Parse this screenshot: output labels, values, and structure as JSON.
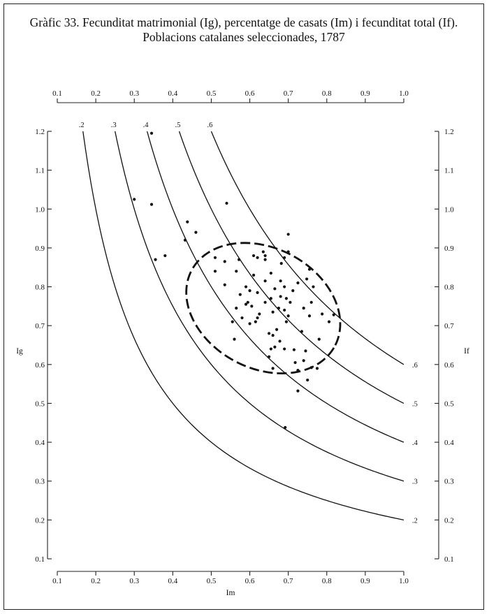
{
  "chart_data": {
    "type": "scatter",
    "title": "Gràfic 33. Fecunditat matrimonial (Ig), percentatge de casats (Im) i fecunditat total (If).",
    "subtitle": "Poblacions catalanes seleccionades, 1787",
    "xlabel": "Im",
    "ylabel": "Ig",
    "y2label": "If",
    "xlim": [
      0.1,
      1.0
    ],
    "ylim": [
      0.1,
      1.2
    ],
    "xticks": [
      "0.1",
      "0.2",
      "0.3",
      "0.4",
      "0.5",
      "0.6",
      "0.7",
      "0.8",
      "0.9",
      "1.0"
    ],
    "yticks": [
      "0.1",
      "0.2",
      "0.3",
      "0.4",
      "0.5",
      "0.6",
      "0.7",
      "0.8",
      "0.9",
      "1.0",
      "1.1",
      "1.2"
    ],
    "grid": false,
    "iso_curves": [
      {
        "if": 0.2,
        "label": ".2"
      },
      {
        "if": 0.3,
        "label": ".3"
      },
      {
        "if": 0.4,
        "label": ".4"
      },
      {
        "if": 0.5,
        "label": ".5"
      },
      {
        "if": 0.6,
        "label": ".6"
      }
    ],
    "ellipse": {
      "cx": 0.635,
      "cy": 0.745,
      "rx": 0.21,
      "ry": 0.155,
      "rotation_deg": 27
    },
    "points": [
      [
        0.345,
        1.195
      ],
      [
        0.3,
        1.025
      ],
      [
        0.345,
        1.012
      ],
      [
        0.54,
        1.015
      ],
      [
        0.438,
        0.967
      ],
      [
        0.46,
        0.94
      ],
      [
        0.432,
        0.92
      ],
      [
        0.355,
        0.87
      ],
      [
        0.38,
        0.88
      ],
      [
        0.7,
        0.935
      ],
      [
        0.7,
        0.89
      ],
      [
        0.69,
        0.875
      ],
      [
        0.51,
        0.875
      ],
      [
        0.535,
        0.865
      ],
      [
        0.572,
        0.87
      ],
      [
        0.61,
        0.88
      ],
      [
        0.62,
        0.875
      ],
      [
        0.635,
        0.89
      ],
      [
        0.64,
        0.88
      ],
      [
        0.64,
        0.87
      ],
      [
        0.682,
        0.86
      ],
      [
        0.51,
        0.84
      ],
      [
        0.565,
        0.84
      ],
      [
        0.61,
        0.83
      ],
      [
        0.655,
        0.835
      ],
      [
        0.755,
        0.845
      ],
      [
        0.748,
        0.82
      ],
      [
        0.535,
        0.805
      ],
      [
        0.59,
        0.8
      ],
      [
        0.64,
        0.815
      ],
      [
        0.68,
        0.815
      ],
      [
        0.725,
        0.81
      ],
      [
        0.765,
        0.8
      ],
      [
        0.575,
        0.78
      ],
      [
        0.6,
        0.79
      ],
      [
        0.62,
        0.785
      ],
      [
        0.665,
        0.795
      ],
      [
        0.69,
        0.8
      ],
      [
        0.712,
        0.79
      ],
      [
        0.68,
        0.775
      ],
      [
        0.695,
        0.77
      ],
      [
        0.705,
        0.76
      ],
      [
        0.655,
        0.77
      ],
      [
        0.64,
        0.76
      ],
      [
        0.595,
        0.76
      ],
      [
        0.605,
        0.75
      ],
      [
        0.59,
        0.755
      ],
      [
        0.565,
        0.745
      ],
      [
        0.625,
        0.73
      ],
      [
        0.62,
        0.72
      ],
      [
        0.615,
        0.71
      ],
      [
        0.6,
        0.705
      ],
      [
        0.58,
        0.72
      ],
      [
        0.555,
        0.71
      ],
      [
        0.76,
        0.76
      ],
      [
        0.74,
        0.745
      ],
      [
        0.675,
        0.745
      ],
      [
        0.66,
        0.735
      ],
      [
        0.7,
        0.725
      ],
      [
        0.695,
        0.71
      ],
      [
        0.755,
        0.725
      ],
      [
        0.788,
        0.73
      ],
      [
        0.818,
        0.728
      ],
      [
        0.806,
        0.71
      ],
      [
        0.69,
        0.74
      ],
      [
        0.67,
        0.69
      ],
      [
        0.65,
        0.68
      ],
      [
        0.66,
        0.675
      ],
      [
        0.678,
        0.66
      ],
      [
        0.735,
        0.685
      ],
      [
        0.78,
        0.665
      ],
      [
        0.56,
        0.665
      ],
      [
        0.655,
        0.64
      ],
      [
        0.665,
        0.645
      ],
      [
        0.715,
        0.638
      ],
      [
        0.69,
        0.64
      ],
      [
        0.745,
        0.635
      ],
      [
        0.65,
        0.62
      ],
      [
        0.74,
        0.61
      ],
      [
        0.718,
        0.605
      ],
      [
        0.66,
        0.59
      ],
      [
        0.76,
        0.592
      ],
      [
        0.775,
        0.59
      ],
      [
        0.725,
        0.585
      ],
      [
        0.75,
        0.56
      ],
      [
        0.725,
        0.532
      ],
      [
        0.692,
        0.438
      ]
    ]
  }
}
